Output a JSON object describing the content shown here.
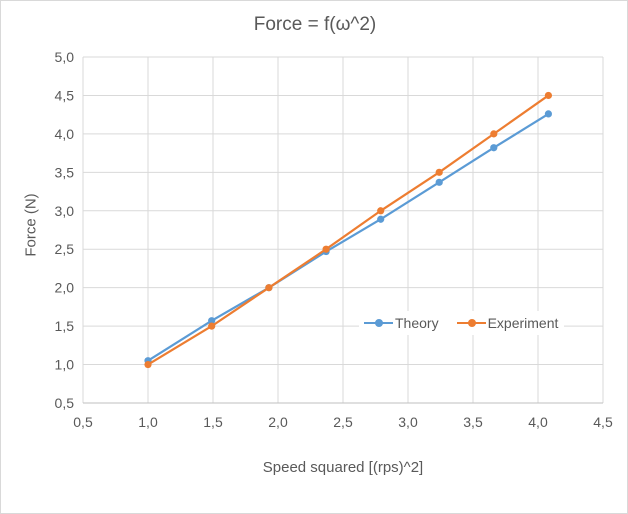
{
  "window": {
    "background": "#ffffff",
    "border_color": "#d9d9d9"
  },
  "chart_data": {
    "type": "line",
    "title": "Force = f(ω^2)",
    "xlabel": "Speed squared [(rps)^2]",
    "ylabel": "Force (N)",
    "x": [
      1.0,
      1.49,
      1.93,
      2.37,
      2.79,
      3.24,
      3.66,
      4.08
    ],
    "series": [
      {
        "name": "Theory",
        "color": "#5B9BD5",
        "values": [
          1.05,
          1.57,
          2.0,
          2.47,
          2.89,
          3.37,
          3.82,
          4.26
        ]
      },
      {
        "name": "Experiment",
        "color": "#ED7D31",
        "values": [
          1.0,
          1.5,
          2.0,
          2.5,
          3.0,
          3.5,
          4.0,
          4.5
        ]
      }
    ],
    "xlim": [
      0.5,
      4.5
    ],
    "ylim": [
      0.5,
      5.0
    ],
    "x_ticks": {
      "values": [
        0.5,
        1.0,
        1.5,
        2.0,
        2.5,
        3.0,
        3.5,
        4.0,
        4.5
      ],
      "labels": [
        "0,5",
        "1,0",
        "1,5",
        "2,0",
        "2,5",
        "3,0",
        "3,5",
        "4,0",
        "4,5"
      ]
    },
    "y_ticks": {
      "values": [
        0.5,
        1.0,
        1.5,
        2.0,
        2.5,
        3.0,
        3.5,
        4.0,
        4.5,
        5.0
      ],
      "labels": [
        "0,5",
        "1,0",
        "1,5",
        "2,0",
        "2,5",
        "3,0",
        "3,5",
        "4,0",
        "4,5",
        "5,0"
      ]
    },
    "grid": true,
    "marker": "circle",
    "legend_position": "inside-lower-right",
    "decimal_separator": ",",
    "colors": {
      "gridline": "#d9d9d9",
      "axis_line": "#bfbfbf",
      "text": "#595959"
    }
  }
}
